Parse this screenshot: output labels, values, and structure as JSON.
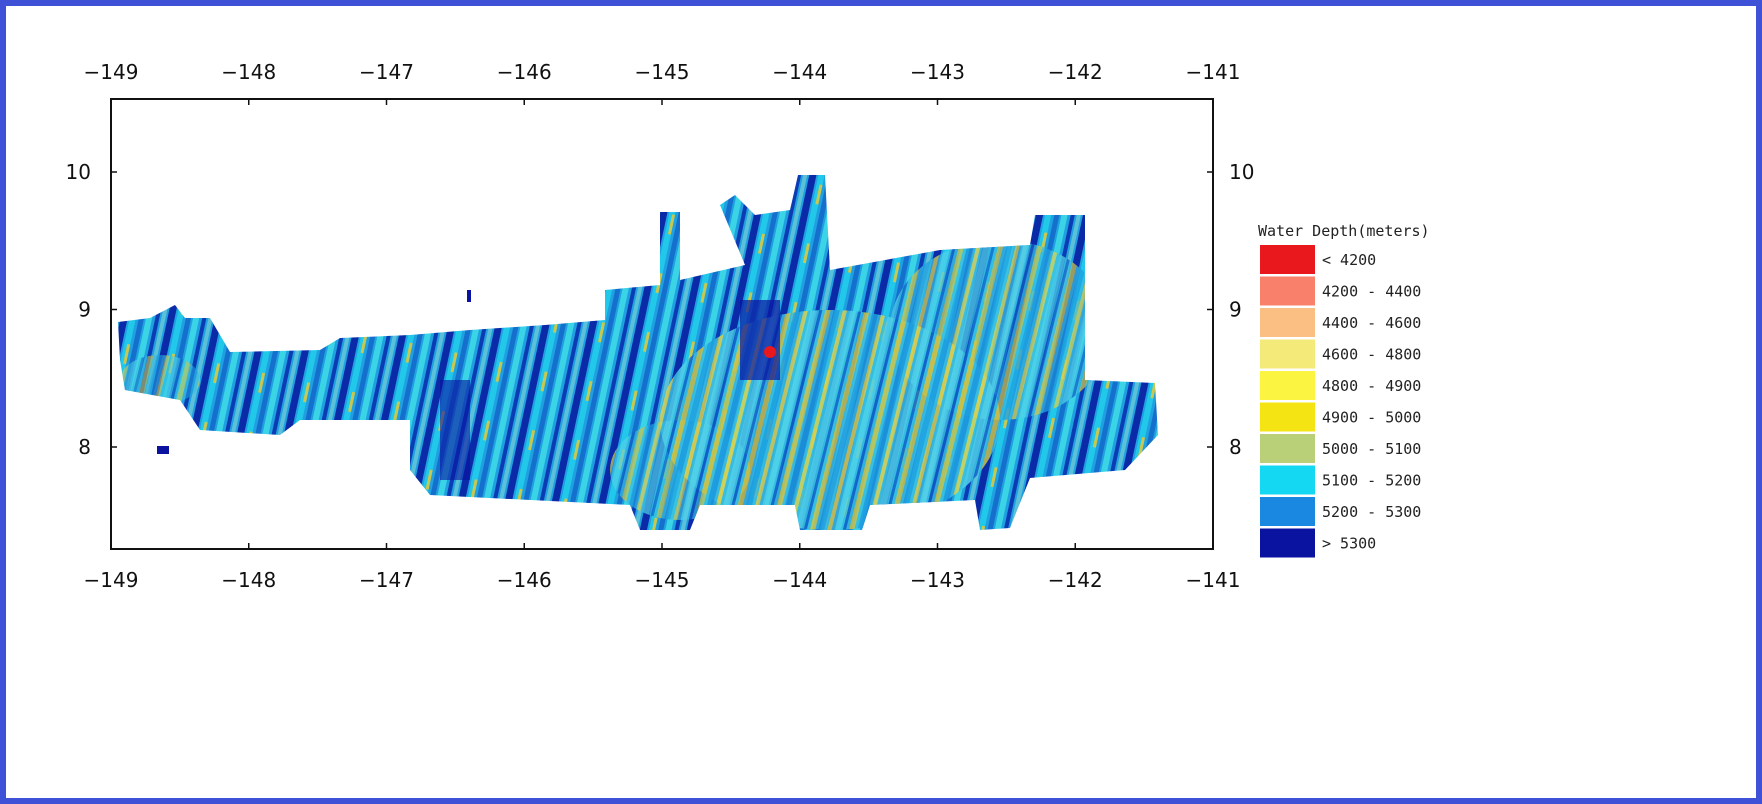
{
  "map": {
    "x_ticks": [
      "−149",
      "−148",
      "−147",
      "−146",
      "−145",
      "−144",
      "−143",
      "−142",
      "−141"
    ],
    "y_ticks": [
      "10",
      "9",
      "8"
    ],
    "legend": {
      "title": "Water Depth(meters)",
      "items": [
        {
          "label": "< 4200",
          "color": "#e8181c"
        },
        {
          "label": "4200 - 4400",
          "color": "#f9806a"
        },
        {
          "label": "4400 - 4600",
          "color": "#fbbf84"
        },
        {
          "label": "4600 - 4800",
          "color": "#f4ea7a"
        },
        {
          "label": "4800 - 4900",
          "color": "#fbf542"
        },
        {
          "label": "4900 - 5000",
          "color": "#f5e414"
        },
        {
          "label": "5000 - 5100",
          "color": "#b9cf78"
        },
        {
          "label": "5100 - 5200",
          "color": "#14d8f2"
        },
        {
          "label": "5200 - 5300",
          "color": "#1a88e0"
        },
        {
          "label": "> 5300",
          "color": "#0a12a0"
        }
      ]
    }
  }
}
